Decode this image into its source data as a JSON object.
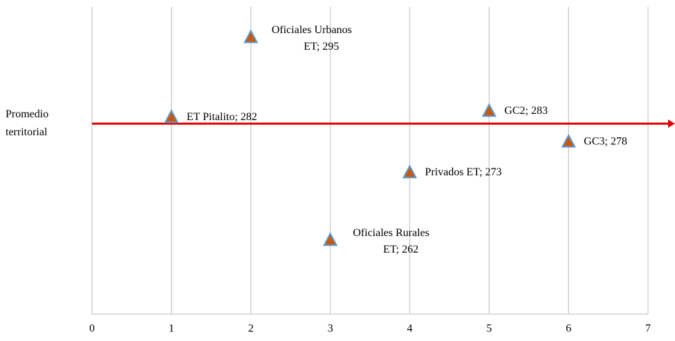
{
  "chart_data": {
    "type": "scatter",
    "series": [
      {
        "x": [
          1,
          2,
          3,
          4,
          5,
          6
        ],
        "values": [
          282,
          295,
          262,
          273,
          283,
          278
        ],
        "color": "#c55a11",
        "edge_color": "#5b9bd5",
        "value_labels": [
          [
            "ET Pitalito; 282"
          ],
          [
            "Oficiales Urbanos",
            "ET; 295"
          ],
          [
            "Oficiales Rurales",
            "ET; 262"
          ],
          [
            "Privados ET; 273"
          ],
          [
            "GC2; 283"
          ],
          [
            "GC3; 278"
          ]
        ]
      }
    ],
    "reference_line": {
      "value": 281,
      "label": [
        "Promedio",
        "territorial"
      ],
      "color": "#e00000"
    },
    "xlim": [
      0,
      7
    ],
    "xticks": [
      0,
      1,
      2,
      3,
      4,
      5,
      6,
      7
    ],
    "ylim": [
      250,
      300
    ],
    "grid": true
  }
}
